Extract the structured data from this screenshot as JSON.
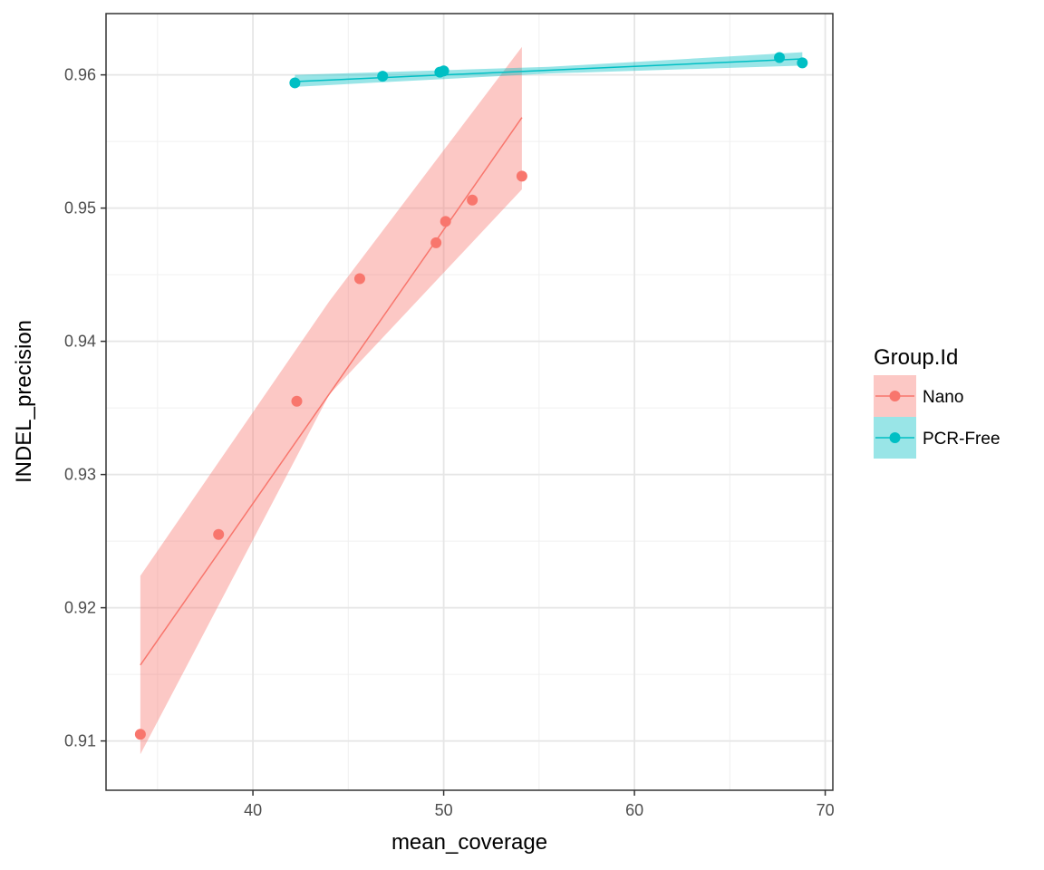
{
  "chart_data": {
    "type": "scatter",
    "xlabel": "mean_coverage",
    "ylabel": "INDEL_precision",
    "xlim": [
      32.3,
      70.4
    ],
    "ylim": [
      0.9063,
      0.9646
    ],
    "x_ticks": [
      40,
      50,
      60,
      70
    ],
    "y_ticks": [
      0.91,
      0.92,
      0.93,
      0.94,
      0.95,
      0.96
    ],
    "x_tick_labels": [
      "40",
      "50",
      "60",
      "70"
    ],
    "y_tick_labels": [
      "0.91",
      "0.92",
      "0.93",
      "0.94",
      "0.95",
      "0.96"
    ],
    "grid": true,
    "legend": {
      "title": "Group.Id",
      "position": "right"
    },
    "series": [
      {
        "name": "Nano",
        "color": "#F8766D",
        "ribbon_color": "#F8766D",
        "points": [
          [
            34.1,
            0.9105
          ],
          [
            38.2,
            0.9255
          ],
          [
            42.3,
            0.9355
          ],
          [
            45.6,
            0.9447
          ],
          [
            49.6,
            0.9474
          ],
          [
            50.1,
            0.949
          ],
          [
            51.5,
            0.9506
          ],
          [
            54.1,
            0.9524
          ]
        ],
        "fit": {
          "x_start": 34.1,
          "y_start": 0.9157,
          "x_end": 54.1,
          "y_end": 0.9568
        },
        "ribbon": {
          "x": [
            34.1,
            44.0,
            54.1
          ],
          "lower": [
            0.909,
            0.936,
            0.9514
          ],
          "upper": [
            0.9224,
            0.943,
            0.9621
          ]
        }
      },
      {
        "name": "PCR-Free",
        "color": "#00BFC4",
        "ribbon_color": "#00BFC4",
        "points": [
          [
            42.2,
            0.9594
          ],
          [
            46.8,
            0.9599
          ],
          [
            49.8,
            0.9602
          ],
          [
            50.0,
            0.9603
          ],
          [
            67.6,
            0.9613
          ],
          [
            68.8,
            0.9609
          ]
        ],
        "fit": {
          "x_start": 42.2,
          "y_start": 0.9595,
          "x_end": 68.8,
          "y_end": 0.9612
        },
        "ribbon": {
          "x": [
            42.2,
            55.5,
            68.8
          ],
          "lower": [
            0.9591,
            0.9601,
            0.9607
          ],
          "upper": [
            0.96,
            0.9606,
            0.9617
          ]
        }
      }
    ]
  }
}
